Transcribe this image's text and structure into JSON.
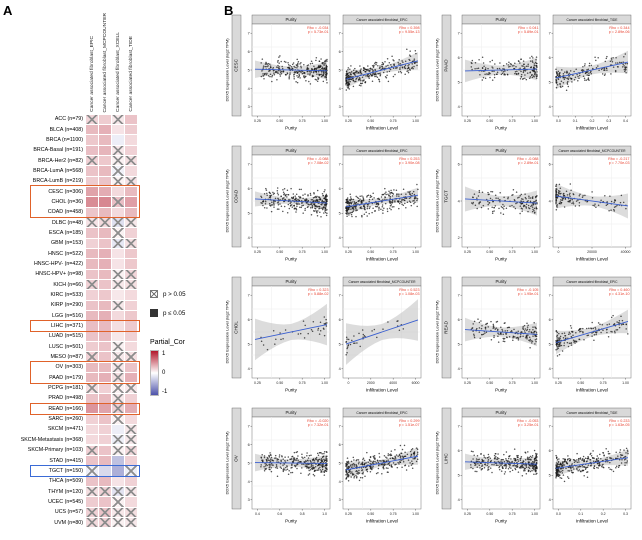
{
  "panelA": {
    "label": "A",
    "columns": [
      "Cancer associated fibroblast_EPIC",
      "Cancer associated fibroblast_MCPCOUNTER",
      "Cancer associated fibroblast_XCELL",
      "Cancer associated fibroblast_TIDE"
    ],
    "legend": {
      "p_gt": "p > 0.05",
      "p_le": "p ≤ 0.05",
      "scale_title": "Partial_Cor",
      "scale_ticks": [
        "1",
        "0",
        "-1"
      ]
    },
    "colors": {
      "pos": "#b2182b",
      "neg": "#4d52aa",
      "highlight_orange": "#e0622a",
      "highlight_blue": "#3a6bd6"
    },
    "highlights": [
      {
        "from": "CESC (n=306)",
        "to": "COAD (n=458)",
        "color": "#e0622a"
      },
      {
        "from": "LIHC (n=371)",
        "to": "LIHC (n=371)",
        "color": "#e0622a"
      },
      {
        "from": "OV (n=303)",
        "to": "PAAD (n=179)",
        "color": "#e0622a"
      },
      {
        "from": "READ (n=166)",
        "to": "READ (n=166)",
        "color": "#e0622a"
      },
      {
        "from": "TGCT (n=150)",
        "to": "TGCT (n=150)",
        "color": "#3a6bd6"
      }
    ],
    "rows": [
      {
        "label": "ACC (n=79)",
        "v": [
          0.18,
          0.22,
          0.1,
          0.26
        ],
        "sig": [
          false,
          true,
          false,
          true
        ]
      },
      {
        "label": "BLCA (n=408)",
        "v": [
          0.3,
          0.34,
          0.12,
          0.22
        ],
        "sig": [
          true,
          true,
          true,
          true
        ]
      },
      {
        "label": "BRCA (n=1100)",
        "v": [
          0.24,
          0.3,
          -0.1,
          0.16
        ],
        "sig": [
          true,
          true,
          true,
          true
        ]
      },
      {
        "label": "BRCA-Basal (n=191)",
        "v": [
          0.28,
          0.32,
          0.1,
          0.2
        ],
        "sig": [
          true,
          true,
          false,
          true
        ]
      },
      {
        "label": "BRCA-Her2 (n=82)",
        "v": [
          0.2,
          0.24,
          0.06,
          0.14
        ],
        "sig": [
          false,
          true,
          false,
          false
        ]
      },
      {
        "label": "BRCA-LumA (n=568)",
        "v": [
          0.26,
          0.3,
          -0.08,
          0.16
        ],
        "sig": [
          true,
          true,
          false,
          true
        ]
      },
      {
        "label": "BRCA-LumB (n=219)",
        "v": [
          0.22,
          0.26,
          0.05,
          0.12
        ],
        "sig": [
          true,
          true,
          false,
          false
        ]
      },
      {
        "label": "CESC (n=306)",
        "v": [
          0.4,
          0.36,
          0.16,
          0.3
        ],
        "sig": [
          true,
          true,
          true,
          true
        ]
      },
      {
        "label": "CHOL (n=36)",
        "v": [
          0.5,
          0.52,
          0.28,
          0.42
        ],
        "sig": [
          true,
          true,
          false,
          true
        ]
      },
      {
        "label": "COAD (n=458)",
        "v": [
          0.25,
          0.3,
          0.16,
          0.3
        ],
        "sig": [
          true,
          true,
          true,
          true
        ]
      },
      {
        "label": "DLBC (n=48)",
        "v": [
          0.12,
          0.16,
          -0.18,
          0.1
        ],
        "sig": [
          false,
          false,
          false,
          false
        ]
      },
      {
        "label": "ESCA (n=185)",
        "v": [
          0.26,
          0.3,
          0.06,
          0.2
        ],
        "sig": [
          true,
          true,
          false,
          true
        ]
      },
      {
        "label": "GBM (n=153)",
        "v": [
          0.2,
          0.26,
          -0.14,
          0.14
        ],
        "sig": [
          true,
          true,
          false,
          false
        ]
      },
      {
        "label": "HNSC (n=522)",
        "v": [
          0.3,
          0.34,
          0.12,
          0.24
        ],
        "sig": [
          true,
          true,
          true,
          true
        ]
      },
      {
        "label": "HNSC-HPV- (n=422)",
        "v": [
          0.3,
          0.34,
          0.12,
          0.24
        ],
        "sig": [
          true,
          true,
          true,
          true
        ]
      },
      {
        "label": "HNSC-HPV+ (n=98)",
        "v": [
          0.26,
          0.3,
          0.06,
          0.18
        ],
        "sig": [
          true,
          true,
          false,
          false
        ]
      },
      {
        "label": "KICH (n=66)",
        "v": [
          0.2,
          0.26,
          0.1,
          0.14
        ],
        "sig": [
          false,
          true,
          false,
          false
        ]
      },
      {
        "label": "KIRC (n=533)",
        "v": [
          0.2,
          0.24,
          0.1,
          0.16
        ],
        "sig": [
          true,
          true,
          true,
          true
        ]
      },
      {
        "label": "KIRP (n=290)",
        "v": [
          0.26,
          0.3,
          0.1,
          0.2
        ],
        "sig": [
          true,
          true,
          false,
          true
        ]
      },
      {
        "label": "LGG (n=516)",
        "v": [
          0.3,
          0.34,
          0.16,
          0.24
        ],
        "sig": [
          true,
          true,
          true,
          true
        ]
      },
      {
        "label": "LIHC (n=371)",
        "v": [
          0.28,
          0.3,
          0.14,
          0.23
        ],
        "sig": [
          true,
          true,
          true,
          true
        ]
      },
      {
        "label": "LUAD (n=515)",
        "v": [
          0.26,
          0.3,
          0.1,
          0.2
        ],
        "sig": [
          true,
          true,
          true,
          true
        ]
      },
      {
        "label": "LUSC (n=501)",
        "v": [
          0.22,
          0.26,
          0.06,
          0.16
        ],
        "sig": [
          true,
          true,
          false,
          true
        ]
      },
      {
        "label": "MESO (n=87)",
        "v": [
          0.2,
          0.26,
          0.1,
          0.14
        ],
        "sig": [
          false,
          true,
          false,
          false
        ]
      },
      {
        "label": "OV (n=303)",
        "v": [
          0.3,
          0.3,
          0.1,
          0.26
        ],
        "sig": [
          true,
          true,
          false,
          true
        ]
      },
      {
        "label": "PAAD (n=179)",
        "v": [
          0.3,
          0.34,
          0.14,
          0.34
        ],
        "sig": [
          true,
          true,
          false,
          true
        ]
      },
      {
        "label": "PCPG (n=181)",
        "v": [
          0.14,
          0.2,
          0.06,
          0.1
        ],
        "sig": [
          false,
          true,
          false,
          false
        ]
      },
      {
        "label": "PRAD (n=498)",
        "v": [
          0.26,
          0.3,
          0.1,
          0.2
        ],
        "sig": [
          true,
          true,
          false,
          true
        ]
      },
      {
        "label": "READ (n=166)",
        "v": [
          0.46,
          0.4,
          0.2,
          0.36
        ],
        "sig": [
          true,
          true,
          false,
          true
        ]
      },
      {
        "label": "SARC (n=260)",
        "v": [
          0.2,
          0.26,
          0.06,
          0.16
        ],
        "sig": [
          true,
          true,
          false,
          true
        ]
      },
      {
        "label": "SKCM (n=471)",
        "v": [
          0.16,
          0.2,
          -0.1,
          0.1
        ],
        "sig": [
          true,
          true,
          true,
          false
        ]
      },
      {
        "label": "SKCM-Metastasis (n=368)",
        "v": [
          0.16,
          0.2,
          -0.1,
          0.1
        ],
        "sig": [
          true,
          true,
          false,
          false
        ]
      },
      {
        "label": "SKCM-Primary (n=103)",
        "v": [
          0.2,
          0.26,
          0.06,
          0.16
        ],
        "sig": [
          false,
          true,
          false,
          false
        ]
      },
      {
        "label": "STAD (n=415)",
        "v": [
          0.26,
          0.3,
          -0.36,
          0.2
        ],
        "sig": [
          true,
          true,
          true,
          true
        ]
      },
      {
        "label": "TGCT (n=150)",
        "v": [
          -0.1,
          -0.22,
          -0.46,
          -0.1
        ],
        "sig": [
          false,
          true,
          true,
          false
        ]
      },
      {
        "label": "THCA (n=509)",
        "v": [
          0.26,
          0.3,
          0.12,
          0.2
        ],
        "sig": [
          true,
          true,
          true,
          true
        ]
      },
      {
        "label": "THYM (n=120)",
        "v": [
          0.14,
          0.2,
          -0.16,
          0.1
        ],
        "sig": [
          false,
          false,
          false,
          false
        ]
      },
      {
        "label": "UCEC (n=545)",
        "v": [
          0.22,
          0.26,
          0.06,
          0.16
        ],
        "sig": [
          true,
          true,
          false,
          true
        ]
      },
      {
        "label": "UCS (n=57)",
        "v": [
          0.2,
          0.26,
          0.1,
          0.14
        ],
        "sig": [
          false,
          false,
          false,
          false
        ]
      },
      {
        "label": "UVM (n=80)",
        "v": [
          0.16,
          0.2,
          0.06,
          0.1
        ],
        "sig": [
          false,
          false,
          false,
          false
        ]
      }
    ]
  },
  "panelB": {
    "label": "B",
    "ylabel": "DDX5 Expression Level (log2 TPM)",
    "colors": {
      "line": "#3a5fd0",
      "band": "#b9b9b9",
      "annotation": "#e8412f",
      "strip": "#d9d9d9",
      "strip_border": "#555555"
    },
    "pairs": [
      {
        "cancer": "CESC",
        "yticks": [
          "3",
          "4",
          "5",
          "6",
          "7"
        ],
        "plots": [
          {
            "title": "Purity",
            "xlabel": "Purity",
            "rho": "Rho = -0.034",
            "p": "p = 5.73e-01",
            "xticks": [
              "0.25",
              "0.50",
              "0.75",
              "1.00"
            ],
            "n": 306,
            "trend": -0.034,
            "skew": "purity"
          },
          {
            "title": "Cancer associated fibroblast_EPIC",
            "xlabel": "Infiltration Level",
            "rho": "Rho = 0.398",
            "p": "p = 9.55e-13",
            "xticks": [
              "0.25",
              "0.50",
              "0.75",
              "1.00"
            ],
            "n": 306,
            "trend": 0.398,
            "skew": "mildleft"
          }
        ]
      },
      {
        "cancer": "PAAD",
        "yticks": [
          "4",
          "5",
          "6",
          "7"
        ],
        "plots": [
          {
            "title": "Purity",
            "xlabel": "Purity",
            "rho": "Rho = 0.041",
            "p": "p = 5.89e-01",
            "xticks": [
              "0.25",
              "0.50",
              "0.75",
              "1.00"
            ],
            "n": 179,
            "trend": 0.041,
            "skew": "purity"
          },
          {
            "title": "Cancer associated fibroblast_TIDE",
            "xlabel": "Infiltration Level",
            "rho": "Rho = 0.344",
            "p": "p = 2.89e-06",
            "xticks": [
              "0.0",
              "0.1",
              "0.2",
              "0.3",
              "0.4"
            ],
            "n": 179,
            "trend": 0.344,
            "skew": "mildleft"
          }
        ]
      },
      {
        "cancer": "COAD",
        "yticks": [
          "4",
          "5",
          "6",
          "7"
        ],
        "plots": [
          {
            "title": "Purity",
            "xlabel": "Purity",
            "rho": "Rho = -0.088",
            "p": "p = 7.08e-02",
            "xticks": [
              "0.25",
              "0.50",
              "0.75",
              "1.00"
            ],
            "n": 458,
            "trend": -0.088,
            "skew": "purity"
          },
          {
            "title": "Cancer associated fibroblast_EPIC",
            "xlabel": "Infiltration Level",
            "rho": "Rho = 0.253",
            "p": "p = 3.90e-08",
            "xticks": [
              "0.25",
              "0.50",
              "0.75",
              "1.00"
            ],
            "n": 458,
            "trend": 0.253,
            "skew": "mildleft"
          }
        ]
      },
      {
        "cancer": "TGCT",
        "yticks": [
          "2",
          "4",
          "6"
        ],
        "plots": [
          {
            "title": "Purity",
            "xlabel": "Purity",
            "rho": "Rho = -0.088",
            "p": "p = 2.89e-01",
            "xticks": [
              "0.25",
              "0.50",
              "0.75",
              "1.00"
            ],
            "n": 150,
            "trend": -0.088,
            "skew": "purity"
          },
          {
            "title": "Cancer associated fibroblast_MCPCOUNTER",
            "xlabel": "Infiltration Level",
            "rho": "Rho = -0.217",
            "p": "p = 7.70e-03",
            "xticks": [
              "0",
              "20000",
              "40000"
            ],
            "n": 150,
            "trend": -0.217,
            "skew": "left"
          }
        ]
      },
      {
        "cancer": "CHOL",
        "yticks": [
          "4",
          "5",
          "6",
          "7"
        ],
        "plots": [
          {
            "title": "Purity",
            "xlabel": "Purity",
            "rho": "Rho = 0.323",
            "p": "p = 5.88e-02",
            "xticks": [
              "0.25",
              "0.50",
              "0.75",
              "1.00"
            ],
            "n": 36,
            "trend": 0.323,
            "skew": "purity"
          },
          {
            "title": "Cancer associated fibroblast_MCPCOUNTER",
            "xlabel": "Infiltration Level",
            "rho": "Rho = 0.523",
            "p": "p = 1.08e-03",
            "xticks": [
              "0",
              "2000",
              "4000",
              "6000"
            ],
            "n": 36,
            "trend": 0.523,
            "skew": "mildleft"
          }
        ]
      },
      {
        "cancer": "READ",
        "yticks": [
          "4",
          "5",
          "6",
          "7"
        ],
        "plots": [
          {
            "title": "Purity",
            "xlabel": "Purity",
            "rho": "Rho = -0.105",
            "p": "p = 1.95e-01",
            "xticks": [
              "0.25",
              "0.50",
              "0.75",
              "1.00"
            ],
            "n": 166,
            "trend": -0.105,
            "skew": "purity"
          },
          {
            "title": "Cancer associated fibroblast_EPIC",
            "xlabel": "Infiltration Level",
            "rho": "Rho = 0.460",
            "p": "p = 4.31e-10",
            "xticks": [
              "0.25",
              "0.50",
              "0.75",
              "1.00"
            ],
            "n": 166,
            "trend": 0.46,
            "skew": "mildleft"
          }
        ]
      },
      {
        "cancer": "OV",
        "yticks": [
          "3",
          "4",
          "5",
          "6",
          "7"
        ],
        "plots": [
          {
            "title": "Purity",
            "xlabel": "Purity",
            "rho": "Rho = -0.020",
            "p": "p = 7.32e-01",
            "xticks": [
              "0.4",
              "0.6",
              "0.8",
              "1.0"
            ],
            "n": 303,
            "trend": -0.02,
            "skew": "purity"
          },
          {
            "title": "Cancer associated fibroblast_EPIC",
            "xlabel": "Infiltration Level",
            "rho": "Rho = 0.299",
            "p": "p = 1.51e-07",
            "xticks": [
              "0.25",
              "0.50",
              "0.75",
              "1.00"
            ],
            "n": 303,
            "trend": 0.299,
            "skew": "mildleft"
          }
        ]
      },
      {
        "cancer": "LIHC",
        "yticks": [
          "4",
          "5",
          "6",
          "7"
        ],
        "plots": [
          {
            "title": "Purity",
            "xlabel": "Purity",
            "rho": "Rho = -0.053",
            "p": "p = 3.25e-01",
            "xticks": [
              "0.25",
              "0.50",
              "0.75",
              "1.00"
            ],
            "n": 371,
            "trend": -0.053,
            "skew": "purity"
          },
          {
            "title": "Cancer associated fibroblast_TIDE",
            "xlabel": "Infiltration Level",
            "rho": "Rho = 0.233",
            "p": "p = 1.63e-05",
            "xticks": [
              "0.0",
              "0.1",
              "0.2",
              "0.3"
            ],
            "n": 371,
            "trend": 0.233,
            "skew": "mildleft"
          }
        ]
      }
    ]
  }
}
